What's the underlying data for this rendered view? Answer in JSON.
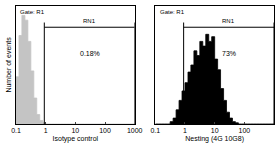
{
  "chart_data": [
    {
      "type": "histogram",
      "title": "Gate: R1",
      "x_label": "Isotype control",
      "y_label": "Number of events",
      "bins": [
        0.1,
        0.126,
        0.158,
        0.2,
        0.251,
        0.316,
        0.398,
        0.501,
        0.631,
        0.794,
        1,
        1.26,
        1.58,
        2,
        2.51,
        3.16,
        3.98,
        5.01,
        6.31,
        7.94,
        10,
        12.6,
        15.8,
        20,
        25.1,
        31.6,
        39.8,
        50.1,
        63.1,
        79.4,
        100,
        126,
        158,
        200,
        251,
        316,
        398,
        501,
        631,
        794,
        1000
      ],
      "counts": [
        40,
        75,
        92,
        88,
        70,
        45,
        22,
        8,
        3,
        1,
        0,
        0,
        0,
        0,
        0,
        0,
        0,
        0,
        0,
        0,
        0,
        0,
        0,
        0,
        0,
        0,
        0,
        0,
        0,
        0,
        0,
        0,
        0,
        0,
        0,
        0,
        0,
        0,
        0,
        0
      ],
      "color": "#c4c4c4",
      "xlim": [
        0.1,
        1000
      ],
      "xticks": [
        0.1,
        1,
        10,
        100,
        1000
      ],
      "ylim": [
        0,
        100
      ],
      "log": "x",
      "tick_labels": "x",
      "gate": {
        "label": "RN1",
        "range": [
          0.9,
          1000
        ]
      },
      "annotations": [
        "0.18%"
      ]
    },
    {
      "type": "histogram",
      "title": "Gate: R1",
      "x_label": "Nesting (4G 10G8)",
      "bins": [
        0.1,
        0.126,
        0.158,
        0.2,
        0.251,
        0.316,
        0.398,
        0.501,
        0.631,
        0.794,
        1,
        1.26,
        1.58,
        2,
        2.51,
        3.16,
        3.98,
        5.01,
        6.31,
        7.94,
        10,
        12.6,
        15.8,
        20,
        25.1,
        31.6,
        39.8,
        50.1,
        63.1,
        79.4,
        100,
        126,
        158,
        200,
        251,
        316,
        398,
        501,
        631,
        794,
        1000
      ],
      "counts": [
        0,
        0,
        0,
        0,
        0,
        2,
        5,
        12,
        20,
        28,
        35,
        44,
        50,
        62,
        58,
        70,
        66,
        76,
        70,
        74,
        55,
        46,
        30,
        20,
        10,
        5,
        2,
        1,
        0,
        0,
        0,
        0,
        0,
        0,
        0,
        0,
        0,
        0,
        0,
        0
      ],
      "color": "#000000",
      "xlim": [
        0.1,
        1000
      ],
      "xticks": [
        0.1,
        1,
        10,
        100,
        1000
      ],
      "ylim": [
        0,
        100
      ],
      "log": "x",
      "tick_labels": "x",
      "gate": {
        "label": "RN1",
        "range": [
          0.9,
          1000
        ]
      },
      "annotations": [
        "73%"
      ]
    }
  ]
}
